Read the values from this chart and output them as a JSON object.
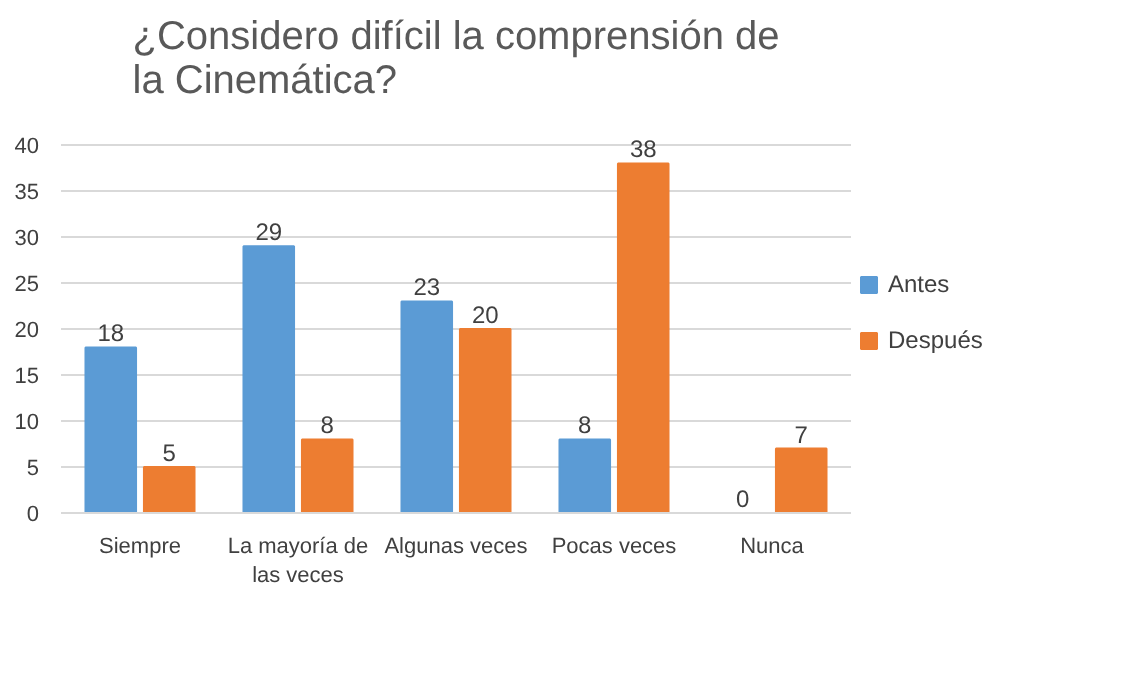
{
  "chart_data": {
    "type": "bar",
    "title": "¿Considero difícil la comprensión de la Cinemática?",
    "categories": [
      "Siempre",
      "La mayoría de las veces",
      "Algunas veces",
      "Pocas veces",
      "Nunca"
    ],
    "series": [
      {
        "name": "Antes",
        "color": "#5b9bd5",
        "values": [
          18,
          29,
          23,
          8,
          0
        ]
      },
      {
        "name": "Después",
        "color": "#ed7d31",
        "values": [
          5,
          8,
          20,
          38,
          7
        ]
      }
    ],
    "ylim": [
      0,
      40
    ],
    "yticks": [
      0,
      5,
      10,
      15,
      20,
      25,
      30,
      35,
      40
    ],
    "grid": "y",
    "legend": "right",
    "data_labels": true
  }
}
